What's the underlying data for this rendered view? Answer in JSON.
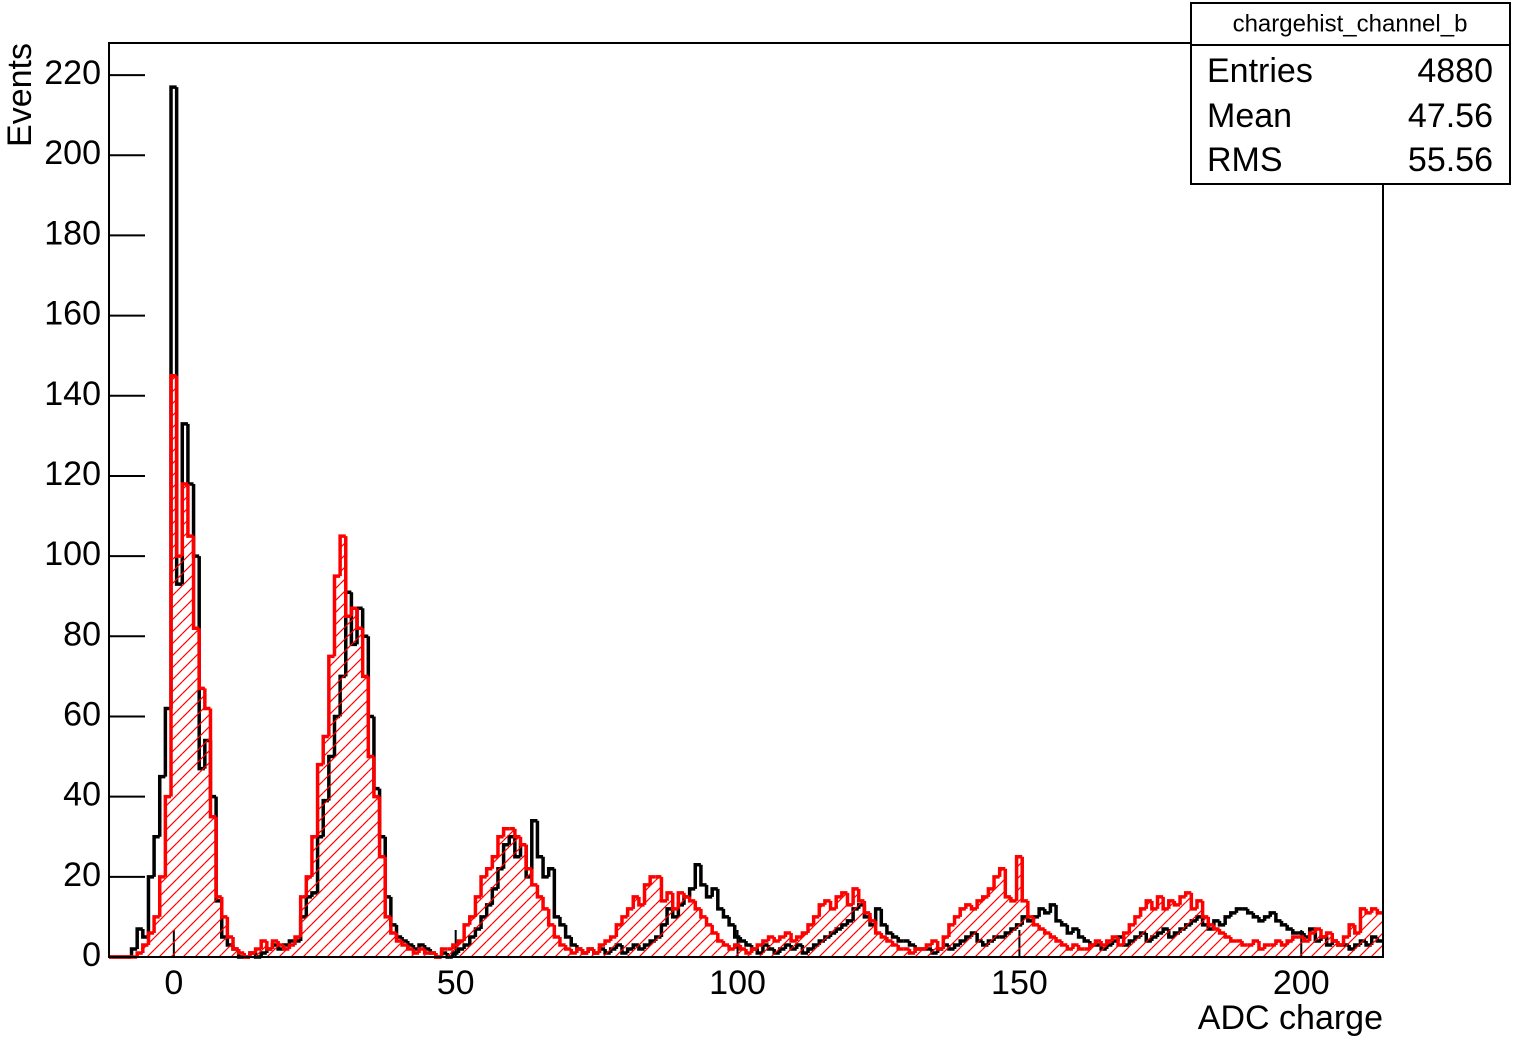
{
  "chart_data": {
    "type": "histogram",
    "xlabel": "ADC charge",
    "ylabel": "Events",
    "xlim": [
      -11.5,
      214.5
    ],
    "ylim": [
      0,
      228
    ],
    "xticks": [
      0,
      50,
      100,
      150,
      200
    ],
    "yticks": [
      0,
      20,
      40,
      60,
      80,
      100,
      120,
      140,
      160,
      180,
      200,
      220
    ],
    "bins": [
      -11.5,
      -10.5,
      -9.5,
      -8.5,
      -7.5,
      -6.5,
      -5.5,
      -4.5,
      -3.5,
      -2.5,
      -1.5,
      -0.5,
      0.5,
      1.5,
      2.5,
      3.5,
      4.5,
      5.5,
      6.5,
      7.5,
      8.5,
      9.5,
      10.5,
      11.5,
      12.5,
      13.5,
      14.5,
      15.5,
      16.5,
      17.5,
      18.5,
      19.5,
      20.5,
      21.5,
      22.5,
      23.5,
      24.5,
      25.5,
      26.5,
      27.5,
      28.5,
      29.5,
      30.5,
      31.5,
      32.5,
      33.5,
      34.5,
      35.5,
      36.5,
      37.5,
      38.5,
      39.5,
      40.5,
      41.5,
      42.5,
      43.5,
      44.5,
      45.5,
      46.5,
      47.5,
      48.5,
      49.5,
      50.5,
      51.5,
      52.5,
      53.5,
      54.5,
      55.5,
      56.5,
      57.5,
      58.5,
      59.5,
      60.5,
      61.5,
      62.5,
      63.5,
      64.5,
      65.5,
      66.5,
      67.5,
      68.5,
      69.5,
      70.5,
      71.5,
      72.5,
      73.5,
      74.5,
      75.5,
      76.5,
      77.5,
      78.5,
      79.5,
      80.5,
      81.5,
      82.5,
      83.5,
      84.5,
      85.5,
      86.5,
      87.5,
      88.5,
      89.5,
      90.5,
      91.5,
      92.5,
      93.5,
      94.5,
      95.5,
      96.5,
      97.5,
      98.5,
      99.5,
      100.5,
      101.5,
      102.5,
      103.5,
      104.5,
      105.5,
      106.5,
      107.5,
      108.5,
      109.5,
      110.5,
      111.5,
      112.5,
      113.5,
      114.5,
      115.5,
      116.5,
      117.5,
      118.5,
      119.5,
      120.5,
      121.5,
      122.5,
      123.5,
      124.5,
      125.5,
      126.5,
      127.5,
      128.5,
      129.5,
      130.5,
      131.5,
      132.5,
      133.5,
      134.5,
      135.5,
      136.5,
      137.5,
      138.5,
      139.5,
      140.5,
      141.5,
      142.5,
      143.5,
      144.5,
      145.5,
      146.5,
      147.5,
      148.5,
      149.5,
      150.5,
      151.5,
      152.5,
      153.5,
      154.5,
      155.5,
      156.5,
      157.5,
      158.5,
      159.5,
      160.5,
      161.5,
      162.5,
      163.5,
      164.5,
      165.5,
      166.5,
      167.5,
      168.5,
      169.5,
      170.5,
      171.5,
      172.5,
      173.5,
      174.5,
      175.5,
      176.5,
      177.5,
      178.5,
      179.5,
      180.5,
      181.5,
      182.5,
      183.5,
      184.5,
      185.5,
      186.5,
      187.5,
      188.5,
      189.5,
      190.5,
      191.5,
      192.5,
      193.5,
      194.5,
      195.5,
      196.5,
      197.5,
      198.5,
      199.5,
      200.5,
      201.5,
      202.5,
      203.5,
      204.5,
      205.5,
      206.5,
      207.5,
      208.5,
      209.5,
      210.5,
      211.5,
      212.5,
      213.5,
      214.5
    ],
    "series": [
      {
        "color": "#000000",
        "hatch": false,
        "values": [
          0,
          0,
          0,
          0,
          2,
          7,
          5,
          20,
          30,
          45,
          62,
          217,
          93,
          133,
          118,
          100,
          47,
          54,
          40,
          14,
          5,
          3,
          2,
          0,
          0,
          1,
          0,
          1,
          2,
          3,
          2,
          3,
          4,
          4,
          10,
          15,
          16,
          30,
          39,
          50,
          60,
          70,
          91,
          78,
          87,
          80,
          60,
          42,
          30,
          15,
          8,
          5,
          4,
          3,
          2,
          3,
          2,
          1,
          0,
          1,
          0,
          1,
          2,
          3,
          5,
          7,
          10,
          13,
          17,
          22,
          28,
          30,
          25,
          28,
          20,
          34,
          25,
          20,
          22,
          10,
          8,
          5,
          3,
          2,
          1,
          2,
          1,
          2,
          1,
          2,
          3,
          1,
          2,
          3,
          2,
          3,
          4,
          5,
          8,
          12,
          10,
          13,
          15,
          17,
          23,
          18,
          15,
          17,
          12,
          10,
          8,
          5,
          4,
          3,
          2,
          1,
          3,
          2,
          1,
          2,
          3,
          2,
          3,
          1,
          2,
          3,
          4,
          5,
          6,
          7,
          8,
          9,
          12,
          13,
          10,
          8,
          12,
          8,
          6,
          5,
          4,
          4,
          3,
          2,
          2,
          2,
          1,
          2,
          3,
          2,
          3,
          4,
          5,
          6,
          4,
          3,
          4,
          5,
          5,
          6,
          7,
          8,
          10,
          9,
          10,
          12,
          11,
          13,
          9,
          8,
          6,
          7,
          5,
          4,
          3,
          3,
          2,
          3,
          4,
          5,
          3,
          4,
          5,
          6,
          4,
          5,
          6,
          7,
          5,
          6,
          7,
          8,
          9,
          10,
          8,
          7,
          9,
          8,
          10,
          11,
          12,
          12,
          11,
          10,
          9,
          10,
          11,
          9,
          8,
          7,
          6,
          6,
          5,
          7,
          4,
          5,
          3,
          4,
          3,
          3,
          2,
          3,
          4,
          3,
          5,
          4
        ]
      },
      {
        "color": "#ff0000",
        "hatch": true,
        "values": [
          0,
          0,
          0,
          0,
          0,
          1,
          3,
          6,
          10,
          20,
          40,
          145,
          100,
          118,
          105,
          82,
          67,
          62,
          35,
          15,
          10,
          5,
          2,
          1,
          0,
          1,
          2,
          4,
          2,
          4,
          3,
          2,
          3,
          5,
          15,
          20,
          30,
          48,
          55,
          75,
          95,
          105,
          85,
          87,
          82,
          70,
          50,
          40,
          25,
          10,
          6,
          4,
          3,
          2,
          1,
          2,
          1,
          1,
          0,
          2,
          2,
          3,
          4,
          8,
          10,
          15,
          20,
          22,
          25,
          30,
          32,
          32,
          30,
          28,
          22,
          18,
          15,
          12,
          8,
          5,
          3,
          2,
          1,
          2,
          1,
          2,
          1,
          3,
          4,
          5,
          8,
          10,
          12,
          15,
          13,
          18,
          20,
          20,
          14,
          16,
          12,
          16,
          15,
          14,
          12,
          10,
          8,
          6,
          4,
          3,
          2,
          3,
          2,
          1,
          2,
          3,
          4,
          5,
          4,
          5,
          6,
          4,
          5,
          6,
          8,
          10,
          13,
          14,
          12,
          15,
          16,
          13,
          17,
          14,
          11,
          9,
          6,
          5,
          4,
          3,
          2,
          2,
          1,
          2,
          2,
          3,
          4,
          2,
          5,
          8,
          10,
          12,
          13,
          12,
          14,
          15,
          17,
          20,
          22,
          15,
          14,
          25,
          14,
          10,
          8,
          7,
          6,
          5,
          4,
          3,
          2,
          3,
          2,
          2,
          3,
          4,
          3,
          4,
          5,
          3,
          6,
          8,
          10,
          12,
          14,
          12,
          15,
          12,
          14,
          13,
          15,
          16,
          12,
          14,
          10,
          8,
          7,
          6,
          5,
          4,
          4,
          3,
          3,
          4,
          2,
          3,
          3,
          4,
          3,
          4,
          5,
          5,
          4,
          6,
          7,
          5,
          6,
          4,
          3,
          5,
          8,
          6,
          12,
          11,
          12,
          11
        ]
      }
    ],
    "stats": {
      "title": "chargehist_channel_b",
      "rows": [
        {
          "label": "Entries",
          "value": 4880
        },
        {
          "label": "Mean",
          "value": 47.56
        },
        {
          "label": "RMS",
          "value": 55.56
        }
      ]
    }
  }
}
